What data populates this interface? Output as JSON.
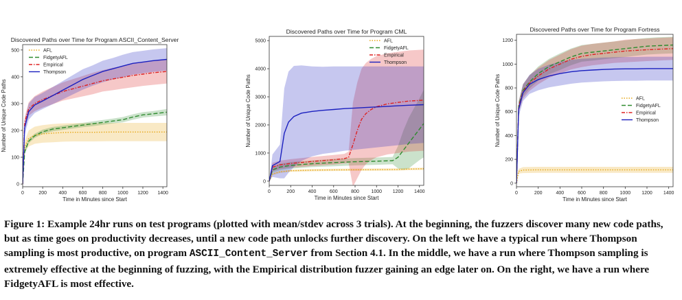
{
  "chart_data": [
    {
      "type": "line",
      "title": "Discovered Paths over Time for Program ASCII_Content_Server",
      "xlabel": "Time in Minutes since Start",
      "ylabel": "Number of Unique Code Paths",
      "xlim": [
        0,
        1440
      ],
      "ylim": [
        -10,
        520
      ],
      "xticks": [
        0,
        200,
        400,
        600,
        800,
        1000,
        1200,
        1400
      ],
      "yticks": [
        0,
        100,
        200,
        300,
        400,
        500
      ],
      "legend": "top-left",
      "grid": false,
      "series": [
        {
          "name": "AFL",
          "color": "#e6a817",
          "dash": "dotted",
          "x": [
            0,
            20,
            60,
            120,
            200,
            300,
            400,
            500,
            700,
            900,
            1100,
            1300,
            1440
          ],
          "y": [
            0,
            140,
            170,
            182,
            187,
            190,
            192,
            193,
            193,
            194,
            194,
            194,
            194
          ],
          "band": [
            0,
            20,
            30,
            32,
            33,
            34,
            34,
            34,
            34,
            34,
            34,
            34,
            34
          ]
        },
        {
          "name": "FidgetyAFL",
          "color": "#2e8b2e",
          "dash": "dashed",
          "x": [
            0,
            20,
            60,
            120,
            200,
            300,
            400,
            500,
            600,
            700,
            800,
            900,
            1000,
            1100,
            1200,
            1300,
            1440
          ],
          "y": [
            0,
            120,
            160,
            180,
            195,
            205,
            210,
            215,
            220,
            225,
            230,
            235,
            240,
            250,
            258,
            262,
            268
          ],
          "band": [
            0,
            10,
            8,
            8,
            8,
            8,
            8,
            8,
            8,
            9,
            9,
            9,
            10,
            10,
            10,
            10,
            12
          ]
        },
        {
          "name": "Empirical",
          "color": "#dd2222",
          "dash": "dashdot",
          "x": [
            0,
            20,
            60,
            120,
            200,
            300,
            400,
            500,
            600,
            700,
            800,
            900,
            1000,
            1100,
            1200,
            1300,
            1440
          ],
          "y": [
            0,
            230,
            280,
            300,
            315,
            330,
            345,
            355,
            365,
            375,
            385,
            392,
            398,
            405,
            410,
            415,
            420
          ],
          "band": [
            0,
            20,
            25,
            28,
            30,
            32,
            34,
            36,
            38,
            40,
            40,
            42,
            42,
            44,
            44,
            45,
            45
          ]
        },
        {
          "name": "Thompson",
          "color": "#1a1fbf",
          "dash": "solid",
          "x": [
            0,
            20,
            60,
            120,
            200,
            300,
            400,
            500,
            600,
            700,
            800,
            900,
            1000,
            1100,
            1200,
            1300,
            1440
          ],
          "y": [
            0,
            210,
            270,
            295,
            310,
            330,
            350,
            370,
            390,
            405,
            420,
            430,
            440,
            450,
            455,
            460,
            465
          ],
          "band": [
            0,
            25,
            30,
            30,
            30,
            32,
            34,
            36,
            38,
            38,
            40,
            40,
            42,
            42,
            42,
            42,
            42
          ]
        }
      ]
    },
    {
      "type": "line",
      "title": "Discovered Paths over Time for Program CML",
      "xlabel": "Time in Minutes since Start",
      "ylabel": "Number of Unique Code Paths",
      "xlim": [
        0,
        1440
      ],
      "ylim": [
        -150,
        5150
      ],
      "xticks": [
        0,
        200,
        400,
        600,
        800,
        1000,
        1200,
        1400
      ],
      "yticks": [
        0,
        1000,
        2000,
        3000,
        4000,
        5000
      ],
      "legend": "top-right",
      "grid": false,
      "series": [
        {
          "name": "AFL",
          "color": "#e6a817",
          "dash": "dotted",
          "x": [
            0,
            30,
            100,
            200,
            400,
            600,
            800,
            1000,
            1200,
            1300,
            1440
          ],
          "y": [
            0,
            250,
            330,
            370,
            390,
            400,
            405,
            410,
            415,
            430,
            440
          ],
          "band": [
            0,
            40,
            40,
            40,
            40,
            40,
            40,
            40,
            40,
            40,
            40
          ]
        },
        {
          "name": "FidgetyAFL",
          "color": "#2e8b2e",
          "dash": "dashed",
          "x": [
            0,
            30,
            100,
            200,
            400,
            600,
            800,
            1000,
            1150,
            1200,
            1250,
            1300,
            1350,
            1400,
            1440
          ],
          "y": [
            0,
            400,
            500,
            560,
            620,
            660,
            690,
            710,
            730,
            850,
            1100,
            1350,
            1600,
            1850,
            2050
          ],
          "band": [
            0,
            100,
            120,
            120,
            120,
            130,
            130,
            130,
            130,
            400,
            700,
            900,
            1000,
            1100,
            1200
          ]
        },
        {
          "name": "Empirical",
          "color": "#dd2222",
          "dash": "dashdot",
          "x": [
            0,
            30,
            100,
            200,
            400,
            600,
            700,
            740,
            780,
            820,
            860,
            900,
            950,
            1000,
            1100,
            1200,
            1300,
            1440
          ],
          "y": [
            0,
            500,
            580,
            630,
            700,
            760,
            800,
            850,
            1300,
            1800,
            2200,
            2400,
            2550,
            2650,
            2750,
            2800,
            2850,
            2880
          ],
          "band": [
            0,
            150,
            150,
            150,
            160,
            170,
            170,
            200,
            1500,
            1700,
            1800,
            1800,
            1800,
            1800,
            1800,
            1800,
            1800,
            1800
          ]
        },
        {
          "name": "Thompson",
          "color": "#1a1fbf",
          "dash": "solid",
          "x": [
            0,
            30,
            100,
            140,
            180,
            230,
            300,
            400,
            500,
            600,
            700,
            800,
            900,
            1000,
            1100,
            1200,
            1300,
            1440
          ],
          "y": [
            0,
            550,
            700,
            1700,
            2100,
            2300,
            2420,
            2480,
            2520,
            2550,
            2580,
            2600,
            2620,
            2640,
            2660,
            2680,
            2700,
            2720
          ],
          "band": [
            0,
            400,
            600,
            1600,
            1800,
            1800,
            1700,
            1600,
            1550,
            1530,
            1500,
            1480,
            1460,
            1440,
            1420,
            1400,
            1380,
            1360
          ]
        }
      ]
    },
    {
      "type": "line",
      "title": "Discovered Paths over Time for Program Fortress",
      "xlabel": "Time in Minutes since Start",
      "ylabel": "Number of Unique Code Paths",
      "xlim": [
        0,
        1440
      ],
      "ylim": [
        -30,
        1250
      ],
      "xticks": [
        0,
        200,
        400,
        600,
        800,
        1000,
        1200,
        1400
      ],
      "yticks": [
        0,
        200,
        400,
        600,
        800,
        1000,
        1200
      ],
      "legend": "center-right",
      "grid": false,
      "series": [
        {
          "name": "AFL",
          "color": "#e6a817",
          "dash": "dotted",
          "x": [
            0,
            20,
            60,
            200,
            600,
            1000,
            1440
          ],
          "y": [
            0,
            100,
            110,
            112,
            112,
            112,
            112
          ],
          "band": [
            0,
            20,
            25,
            25,
            25,
            25,
            25
          ]
        },
        {
          "name": "FidgetyAFL",
          "color": "#2e8b2e",
          "dash": "dashed",
          "x": [
            0,
            20,
            60,
            120,
            200,
            300,
            400,
            500,
            600,
            700,
            800,
            900,
            1000,
            1100,
            1200,
            1300,
            1440
          ],
          "y": [
            0,
            650,
            780,
            850,
            920,
            980,
            1020,
            1060,
            1090,
            1100,
            1110,
            1120,
            1130,
            1140,
            1150,
            1155,
            1160
          ],
          "band": [
            0,
            40,
            50,
            55,
            60,
            65,
            70,
            70,
            70,
            70,
            70,
            70,
            70,
            70,
            70,
            70,
            70
          ]
        },
        {
          "name": "Empirical",
          "color": "#dd2222",
          "dash": "dashdot",
          "x": [
            0,
            20,
            60,
            120,
            200,
            300,
            400,
            500,
            600,
            700,
            800,
            900,
            1000,
            1100,
            1200,
            1300,
            1440
          ],
          "y": [
            0,
            640,
            770,
            840,
            900,
            960,
            1000,
            1040,
            1065,
            1080,
            1090,
            1100,
            1110,
            1115,
            1120,
            1125,
            1130
          ],
          "band": [
            0,
            45,
            60,
            65,
            70,
            75,
            80,
            85,
            90,
            90,
            90,
            90,
            95,
            95,
            95,
            95,
            95
          ]
        },
        {
          "name": "Thompson",
          "color": "#1a1fbf",
          "dash": "solid",
          "x": [
            0,
            20,
            60,
            120,
            200,
            300,
            400,
            500,
            600,
            700,
            800,
            900,
            1000,
            1100,
            1200,
            1300,
            1440
          ],
          "y": [
            0,
            620,
            760,
            830,
            870,
            900,
            920,
            935,
            945,
            950,
            955,
            958,
            960,
            960,
            962,
            962,
            962
          ],
          "band": [
            0,
            60,
            70,
            80,
            90,
            95,
            100,
            100,
            100,
            100,
            100,
            100,
            100,
            100,
            100,
            100,
            100
          ]
        }
      ]
    }
  ],
  "caption": {
    "part1": "Figure 1: Example 24hr runs on test programs (plotted with mean/stdev across 3 trials). At the beginning, the fuzzers discover many new code paths, but as time goes on productivity decreases, until a new code path unlocks further discovery. On the left we have a typical run where Thompson sampling is most productive, on program ",
    "code": "ASCII_Content_Server",
    "part2": " from Section 4.1. In the middle, we have a run where Thompson sampling is extremely effective at the beginning of fuzzing, with the Empirical distribution fuzzer gaining an edge later on. On the right, we have a run where FidgetyAFL is most effective."
  }
}
